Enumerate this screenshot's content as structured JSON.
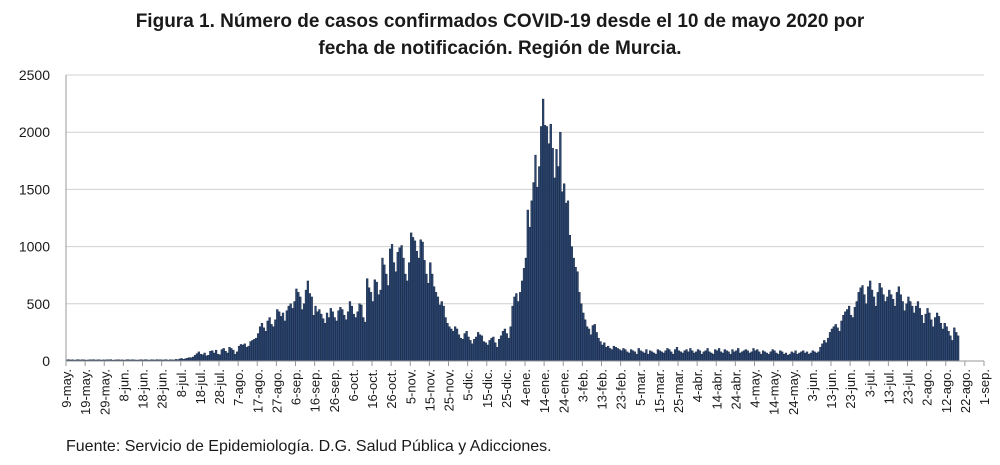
{
  "title_line1": "Figura 1. Número de casos confirmados COVID-19 desde el 10 de mayo 2020 por",
  "title_line2": "fecha de notificación. Región de Murcia.",
  "source": "Fuente: Servicio de Epidemiología. D.G. Salud Pública y Adicciones.",
  "colors": {
    "bar": "#2d4770",
    "bar_edge": "#0f1e3a",
    "grid": "#d0d0d0",
    "axis": "#9a9a9a"
  },
  "chart_data": {
    "type": "bar",
    "title": "Figura 1. Número de casos confirmados COVID-19 desde el 10 de mayo 2020 por fecha de notificación. Región de Murcia.",
    "xlabel": "",
    "ylabel": "",
    "ylim": [
      0,
      2500
    ],
    "yticks": [
      0,
      500,
      1000,
      1500,
      2000,
      2500
    ],
    "grid": true,
    "legend": "none",
    "x_start": "9-may-2020",
    "x_end": "1-sep-2021",
    "xtick_labels": [
      "9-may.",
      "19-may.",
      "29-may.",
      "8-jun.",
      "18-jun.",
      "28-jun.",
      "8-jul.",
      "18-jul.",
      "28-jul.",
      "7-ago.",
      "17-ago.",
      "27-ago.",
      "6-sep.",
      "16-sep.",
      "26-sep.",
      "6-oct.",
      "16-oct.",
      "26-oct.",
      "5-nov.",
      "15-nov.",
      "25-nov.",
      "5-dic.",
      "15-dic.",
      "25-dic.",
      "4-ene.",
      "14-ene.",
      "24-ene.",
      "3-feb.",
      "13-feb.",
      "23-feb.",
      "5-mar.",
      "15-mar.",
      "25-mar.",
      "4-abr.",
      "14-abr.",
      "24-abr.",
      "4-may.",
      "14-may.",
      "24-may.",
      "3-jun.",
      "13-jun.",
      "23-jun.",
      "3-jul.",
      "13-jul.",
      "23-jul.",
      "2-ago.",
      "12-ago.",
      "22-ago.",
      "1-sep."
    ],
    "xtick_interval_days": 10,
    "values": [
      10,
      12,
      9,
      11,
      8,
      10,
      12,
      9,
      11,
      10,
      8,
      9,
      11,
      10,
      12,
      9,
      10,
      11,
      8,
      10,
      9,
      11,
      10,
      12,
      8,
      9,
      10,
      11,
      9,
      10,
      8,
      10,
      12,
      9,
      11,
      10,
      9,
      8,
      10,
      11,
      9,
      12,
      10,
      8,
      11,
      10,
      9,
      12,
      10,
      11,
      9,
      10,
      12,
      8,
      11,
      10,
      9,
      14,
      12,
      18,
      22,
      15,
      20,
      25,
      30,
      28,
      35,
      50,
      65,
      80,
      60,
      55,
      70,
      45,
      50,
      85,
      90,
      70,
      95,
      60,
      55,
      100,
      110,
      85,
      70,
      120,
      110,
      95,
      60,
      80,
      130,
      145,
      140,
      150,
      120,
      130,
      170,
      180,
      190,
      200,
      240,
      300,
      330,
      290,
      260,
      350,
      380,
      320,
      300,
      360,
      450,
      430,
      390,
      420,
      350,
      440,
      480,
      500,
      460,
      520,
      630,
      600,
      560,
      450,
      500,
      620,
      700,
      590,
      560,
      400,
      480,
      430,
      450,
      410,
      370,
      330,
      420,
      380,
      460,
      430,
      380,
      350,
      440,
      470,
      450,
      400,
      360,
      430,
      520,
      480,
      410,
      380,
      430,
      500,
      490,
      380,
      340,
      720,
      640,
      600,
      520,
      710,
      690,
      580,
      620,
      900,
      840,
      760,
      660,
      980,
      1020,
      860,
      780,
      950,
      990,
      1010,
      900,
      760,
      700,
      860,
      1120,
      1080,
      1050,
      960,
      900,
      1060,
      1040,
      880,
      760,
      680,
      860,
      760,
      650,
      600,
      560,
      490,
      520,
      480,
      380,
      330,
      300,
      280,
      260,
      300,
      280,
      230,
      200,
      190,
      240,
      260,
      210,
      180,
      150,
      190,
      210,
      250,
      230,
      220,
      170,
      160,
      140,
      180,
      200,
      210,
      160,
      120,
      190,
      220,
      260,
      280,
      240,
      200,
      300,
      480,
      560,
      590,
      520,
      600,
      700,
      810,
      900,
      1320,
      1170,
      1400,
      1560,
      1800,
      1520,
      1700,
      2050,
      2290,
      2060,
      2050,
      1900,
      2070,
      1860,
      1600,
      1850,
      1700,
      2000,
      1480,
      1550,
      1380,
      1400,
      1100,
      1000,
      900,
      820,
      780,
      600,
      500,
      420,
      360,
      300,
      280,
      230,
      310,
      320,
      250,
      200,
      170,
      140,
      160,
      120,
      130,
      110,
      100,
      130,
      120,
      110,
      100,
      90,
      110,
      100,
      80,
      70,
      100,
      90,
      80,
      60,
      110,
      90,
      80,
      70,
      100,
      60,
      90,
      80,
      70,
      60,
      100,
      90,
      80,
      70,
      90,
      110,
      100,
      80,
      60,
      100,
      120,
      90,
      80,
      70,
      90,
      100,
      80,
      110,
      90,
      70,
      80,
      100,
      90,
      60,
      80,
      90,
      110,
      80,
      70,
      60,
      100,
      90,
      110,
      80,
      70,
      100,
      90,
      80,
      60,
      100,
      80,
      90,
      110,
      70,
      80,
      90,
      100,
      90,
      70,
      80,
      110,
      90,
      100,
      80,
      60,
      90,
      80,
      70,
      60,
      80,
      100,
      90,
      70,
      60,
      90,
      80,
      60,
      70,
      50,
      60,
      80,
      70,
      90,
      60,
      70,
      80,
      90,
      70,
      80,
      60,
      70,
      90,
      80,
      70,
      80,
      120,
      150,
      180,
      160,
      200,
      250,
      280,
      300,
      320,
      290,
      260,
      350,
      400,
      430,
      450,
      480,
      400,
      380,
      470,
      520,
      600,
      640,
      660,
      580,
      500,
      650,
      700,
      620,
      560,
      480,
      600,
      680,
      640,
      580,
      520,
      560,
      620,
      580,
      540,
      480,
      600,
      650,
      580,
      520,
      440,
      500,
      560,
      520,
      480,
      420,
      480,
      520,
      460,
      400,
      330,
      410,
      460,
      420,
      360,
      300,
      380,
      420,
      390,
      330,
      280,
      330,
      300,
      260,
      220,
      180,
      290,
      250,
      220
    ]
  }
}
